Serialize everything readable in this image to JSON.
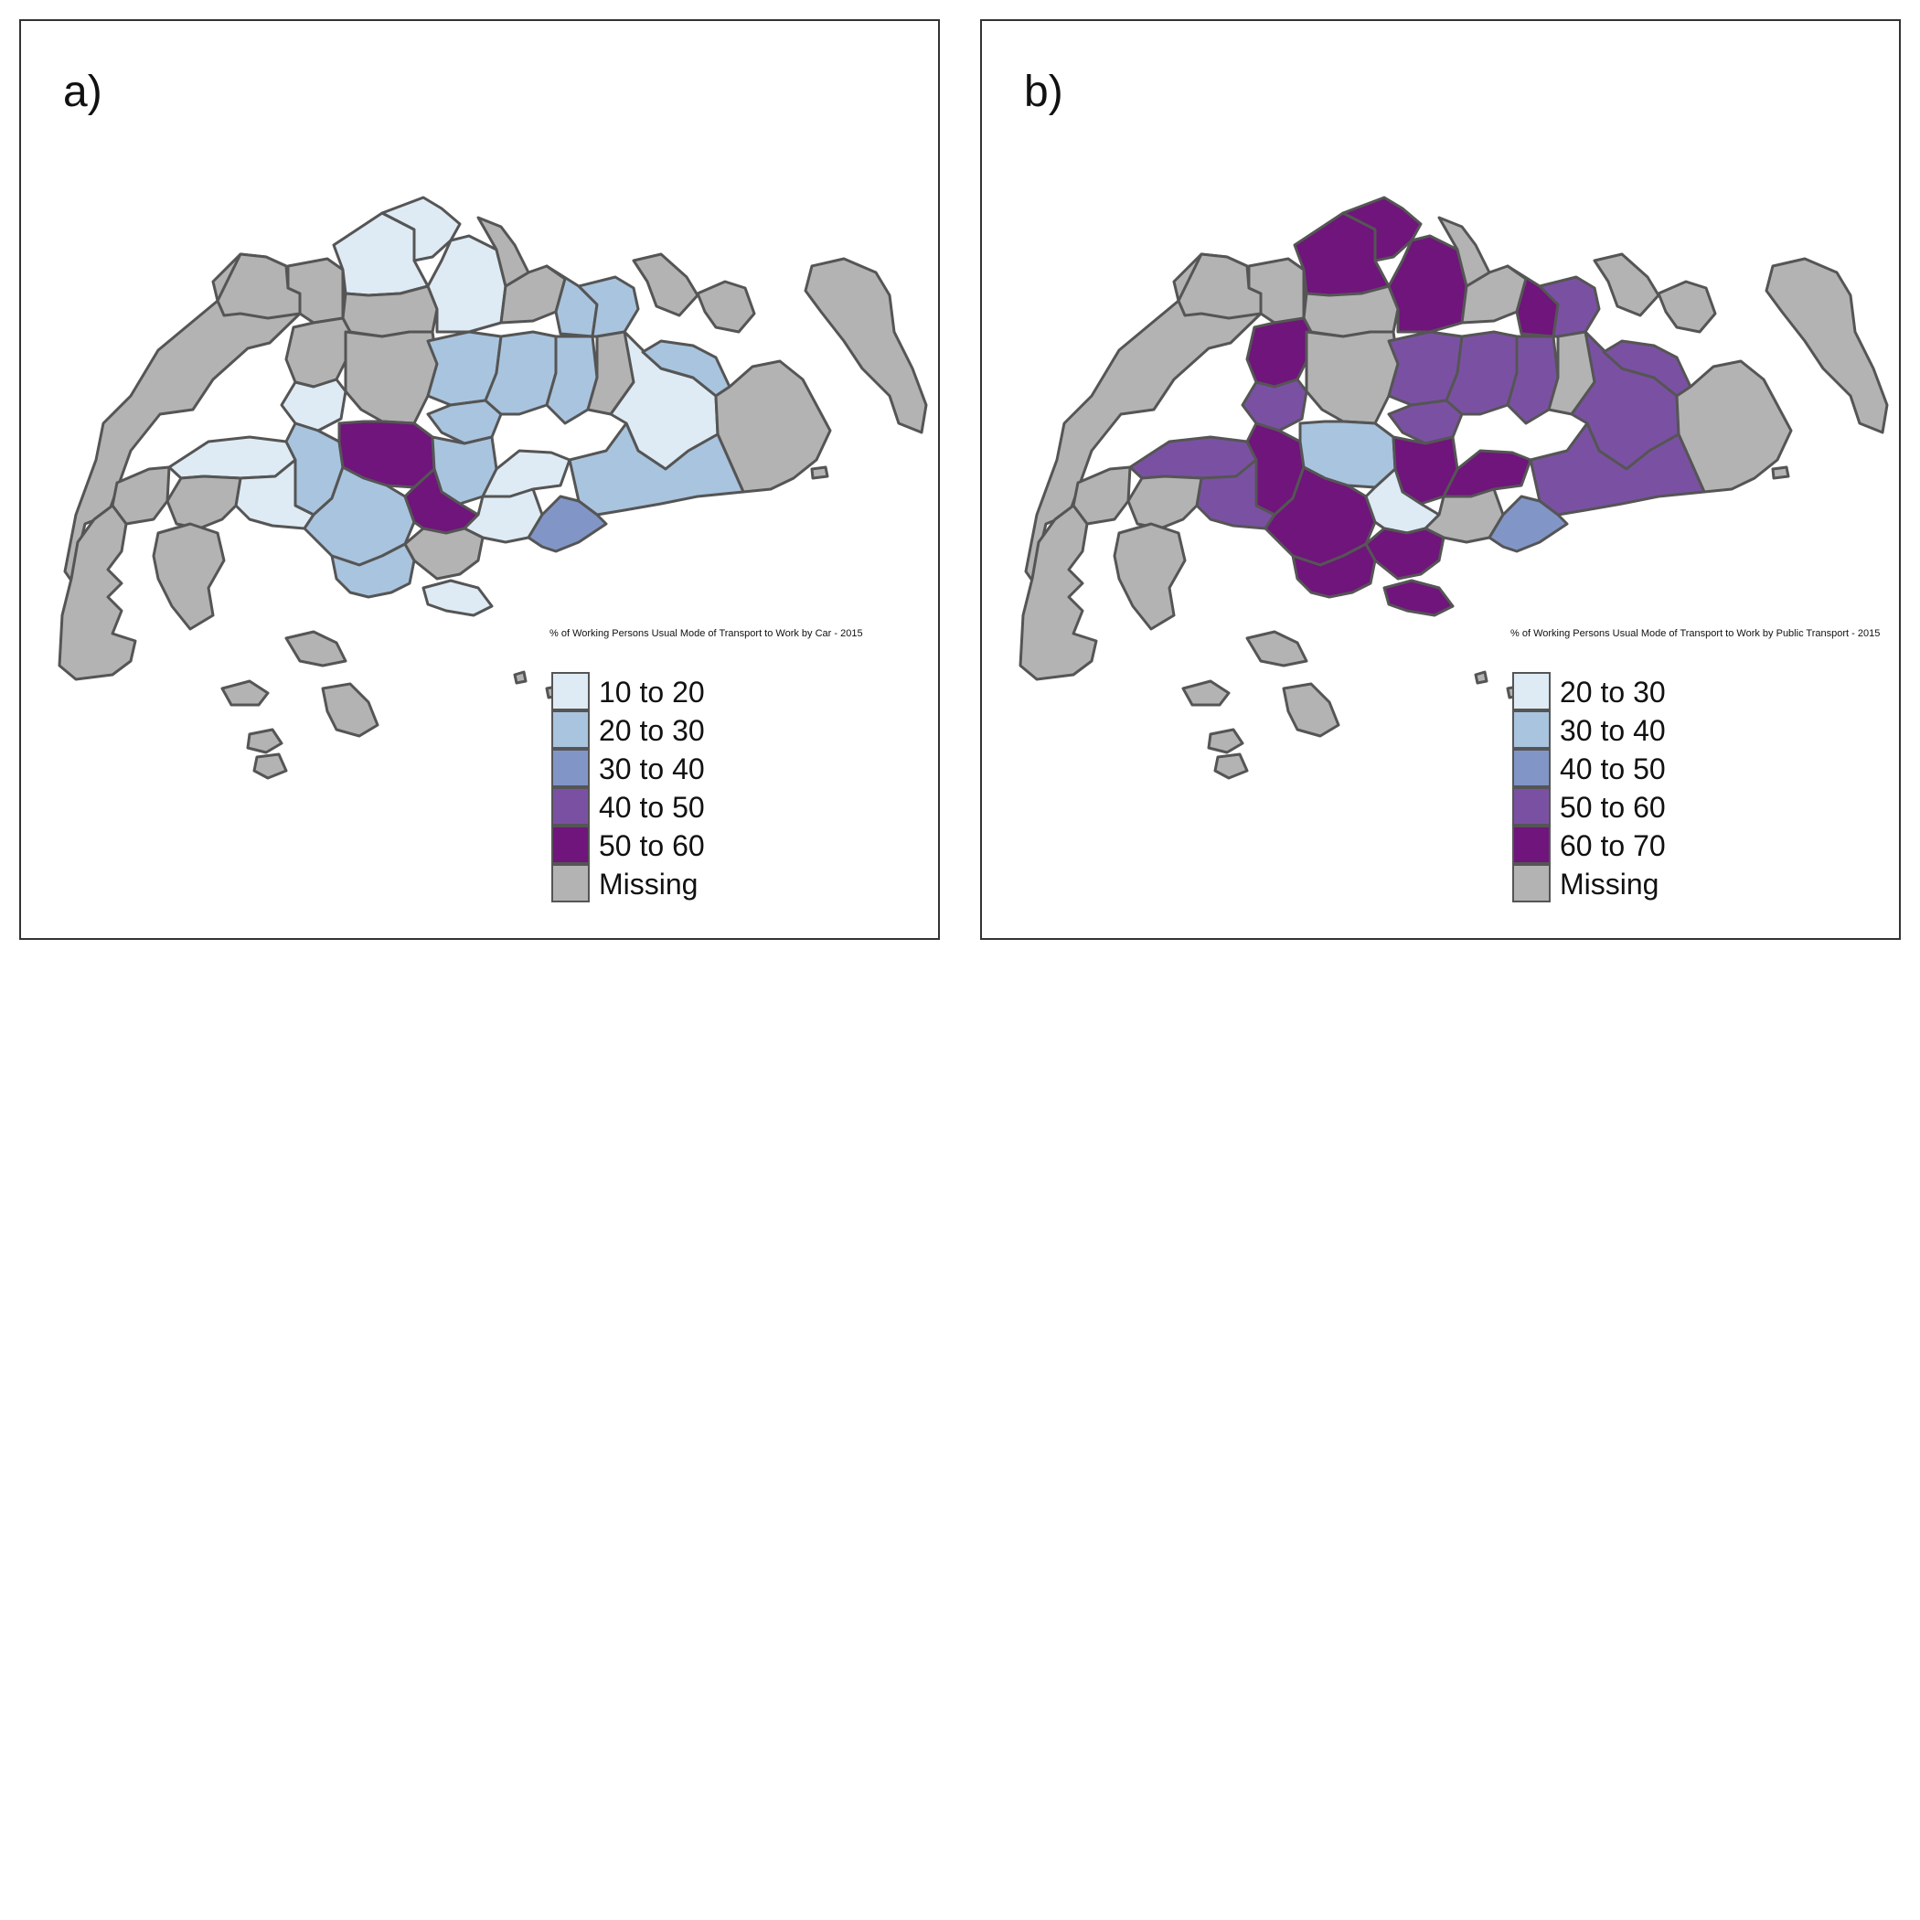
{
  "colors": {
    "missing": "#b3b3b3",
    "c1": "#deebf4",
    "c2": "#a9c4de",
    "c3": "#8196c7",
    "c4": "#7a51a2",
    "c5": "#6f157b",
    "outline": "#555555"
  },
  "panels": [
    {
      "label": "a)",
      "caption": "% of Working Persons Usual Mode of Transport to Work by Car - 2015",
      "legend": [
        {
          "label": "10 to 20",
          "color": "#deebf4"
        },
        {
          "label": "20 to 30",
          "color": "#a9c4de"
        },
        {
          "label": "30 to 40",
          "color": "#8196c7"
        },
        {
          "label": "40 to 50",
          "color": "#7a51a2"
        },
        {
          "label": "50 to 60",
          "color": "#6f157b"
        },
        {
          "label": "Missing",
          "color": "#b3b3b3"
        }
      ],
      "regions": {
        "west-water": "missing",
        "lim-chu-kang": "missing",
        "sungei-kadut": "missing",
        "woodlands": "c1",
        "sembawang": "c1",
        "mandai": "missing",
        "yishun": "c1",
        "seletar": "missing",
        "simpang": "missing",
        "punggol": "c2",
        "pasir-ris-north": "c2",
        "pulau-ubin": "missing",
        "changi-north": "missing",
        "choa-chu-kang": "missing",
        "bukit-panjang": "c1",
        "central-water": "missing",
        "ang-mo-kio": "c2",
        "serangoon": "c2",
        "hougang": "c2",
        "sengkang": "c2",
        "paya-lebar": "missing",
        "tampines": "c1",
        "pasir-ris": "c2",
        "changi": "missing",
        "jurong-west": "c1",
        "bukit-batok": "c2",
        "bukit-timah": "c5",
        "toa-payoh": "c2",
        "geylang": "c1",
        "bedok": "c2",
        "clementi": "c1",
        "queenstown": "c2",
        "tanglin": "c5",
        "kallang": "c1",
        "marine-parade": "c3",
        "jurong-east": "missing",
        "pioneer": "missing",
        "tuas": "missing",
        "jurong-island": "missing",
        "bukit-merah": "c2",
        "downtown": "missing",
        "sentosa": "c1",
        "southern-islands": "missing"
      }
    },
    {
      "label": "b)",
      "caption": "% of Working Persons Usual Mode of Transport to Work by Public Transport - 2015",
      "legend": [
        {
          "label": "20 to 30",
          "color": "#deebf4"
        },
        {
          "label": "30 to 40",
          "color": "#a9c4de"
        },
        {
          "label": "40 to 50",
          "color": "#8196c7"
        },
        {
          "label": "50 to 60",
          "color": "#7a51a2"
        },
        {
          "label": "60 to 70",
          "color": "#6f157b"
        },
        {
          "label": "Missing",
          "color": "#b3b3b3"
        }
      ],
      "regions": {
        "west-water": "missing",
        "lim-chu-kang": "missing",
        "sungei-kadut": "missing",
        "woodlands": "c5",
        "sembawang": "c5",
        "mandai": "missing",
        "yishun": "c5",
        "seletar": "missing",
        "simpang": "missing",
        "punggol": "c5",
        "pasir-ris-north": "c4",
        "pulau-ubin": "missing",
        "changi-north": "missing",
        "choa-chu-kang": "c5",
        "bukit-panjang": "c4",
        "central-water": "missing",
        "ang-mo-kio": "c4",
        "serangoon": "c4",
        "hougang": "c4",
        "sengkang": "c4",
        "paya-lebar": "missing",
        "tampines": "c4",
        "pasir-ris": "c4",
        "changi": "missing",
        "jurong-west": "c4",
        "bukit-batok": "c5",
        "bukit-timah": "c2",
        "toa-payoh": "c5",
        "geylang": "c5",
        "bedok": "c4",
        "clementi": "c4",
        "queenstown": "c5",
        "tanglin": "c1",
        "kallang": "missing",
        "marine-parade": "c3",
        "jurong-east": "missing",
        "pioneer": "missing",
        "tuas": "missing",
        "jurong-island": "missing",
        "bukit-merah": "c5",
        "downtown": "c5",
        "sentosa": "c5",
        "southern-islands": "missing"
      }
    }
  ]
}
